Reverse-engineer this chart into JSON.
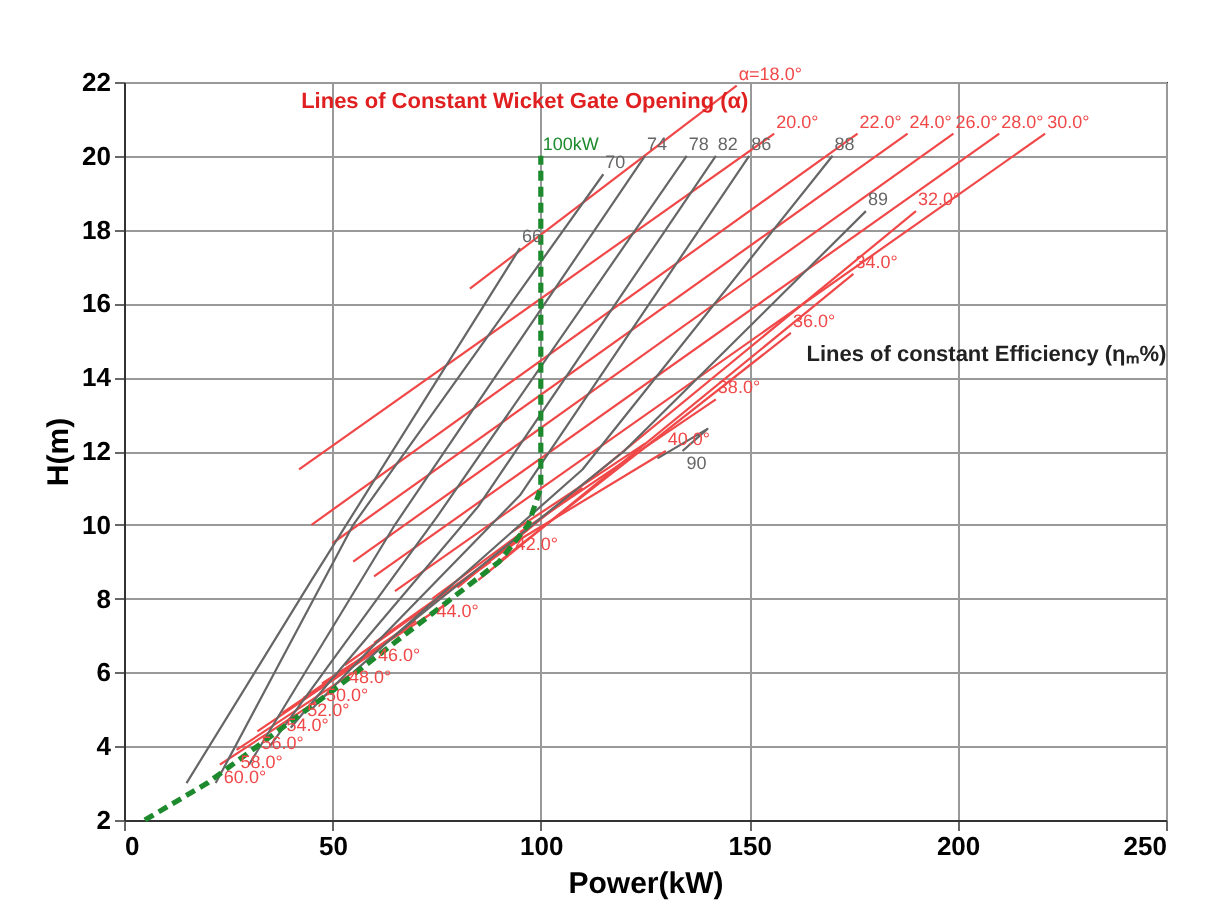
{
  "chart_data": {
    "type": "line",
    "xlabel": "Power(kW)",
    "ylabel": "H(m)",
    "xlim": [
      0,
      250
    ],
    "ylim": [
      2,
      22
    ],
    "xticks": [
      0,
      50,
      100,
      150,
      200,
      250
    ],
    "yticks": [
      2,
      4,
      6,
      8,
      10,
      12,
      14,
      16,
      18,
      20,
      22
    ],
    "grid": true,
    "marker": "none",
    "line_style": "solid",
    "series": [
      {
        "name": "α=18.0°",
        "color": "#f04848",
        "x": [
          83,
          147
        ],
        "values": [
          16.4,
          21.9
        ]
      },
      {
        "name": "20.0°",
        "color": "#f04848",
        "x": [
          42,
          156
        ],
        "values": [
          11.5,
          20.6
        ]
      },
      {
        "name": "22.0°",
        "color": "#f04848",
        "x": [
          45,
          176
        ],
        "values": [
          10,
          20.6
        ]
      },
      {
        "name": "24.0°",
        "color": "#f04848",
        "x": [
          50,
          188
        ],
        "values": [
          9.5,
          20.6
        ]
      },
      {
        "name": "26.0°",
        "color": "#f04848",
        "x": [
          55,
          199
        ],
        "values": [
          9,
          20.6
        ]
      },
      {
        "name": "28.0°",
        "color": "#f04848",
        "x": [
          60,
          210
        ],
        "values": [
          8.6,
          20.6
        ]
      },
      {
        "name": "30.0°",
        "color": "#f04848",
        "x": [
          65,
          221
        ],
        "values": [
          8.2,
          20.6
        ]
      },
      {
        "name": "32.0°",
        "color": "#f04848",
        "x": [
          80,
          190
        ],
        "values": [
          8.3,
          18.5
        ]
      },
      {
        "name": "34.0°",
        "color": "#f04848",
        "x": [
          85,
          175
        ],
        "values": [
          8.5,
          16.8
        ]
      },
      {
        "name": "36.0°",
        "color": "#f04848",
        "x": [
          90,
          160
        ],
        "values": [
          9,
          15.2
        ]
      },
      {
        "name": "38.0°",
        "color": "#f04848",
        "x": [
          95,
          142
        ],
        "values": [
          9.8,
          13.4
        ]
      },
      {
        "name": "40.0°",
        "color": "#f04848",
        "x": [
          92,
          130
        ],
        "values": [
          9.4,
          12
        ]
      },
      {
        "name": "42.0°",
        "color": "#f04848",
        "x": [
          125,
          93
        ],
        "values": [
          12.2,
          9.8
        ]
      },
      {
        "name": "44.0°",
        "color": "#f04848",
        "x": [
          110,
          74
        ],
        "values": [
          11,
          8
        ]
      },
      {
        "name": "46.0°",
        "color": "#f04848",
        "x": [
          95,
          60
        ],
        "values": [
          9.6,
          6.8
        ]
      },
      {
        "name": "48.0°",
        "color": "#f04848",
        "x": [
          88,
          53
        ],
        "values": [
          9,
          6.2
        ]
      },
      {
        "name": "50.0°",
        "color": "#f04848",
        "x": [
          78,
          47.5
        ],
        "values": [
          7.9,
          5.7
        ]
      },
      {
        "name": "52.0°",
        "color": "#f04848",
        "x": [
          70,
          43
        ],
        "values": [
          7.4,
          5.3
        ]
      },
      {
        "name": "54.0°",
        "color": "#f04848",
        "x": [
          68,
          38
        ],
        "values": [
          7.2,
          4.9
        ]
      },
      {
        "name": "56.0°",
        "color": "#f04848",
        "x": [
          62,
          32
        ],
        "values": [
          6.7,
          4.4
        ]
      },
      {
        "name": "58.0°",
        "color": "#f04848",
        "x": [
          55,
          27
        ],
        "values": [
          6,
          3.9
        ]
      },
      {
        "name": "60.0°",
        "color": "#f04848",
        "x": [
          50,
          23
        ],
        "values": [
          5.5,
          3.5
        ]
      },
      {
        "name": "66",
        "color": "#666666",
        "x": [
          15,
          45,
          95
        ],
        "values": [
          3,
          8.5,
          17.5
        ]
      },
      {
        "name": "70",
        "color": "#666666",
        "x": [
          22,
          55,
          115
        ],
        "values": [
          3,
          10,
          19.5
        ]
      },
      {
        "name": "74",
        "color": "#666666",
        "x": [
          30,
          65,
          125
        ],
        "values": [
          3.5,
          10,
          20
        ]
      },
      {
        "name": "78",
        "color": "#666666",
        "x": [
          35,
          75,
          135
        ],
        "values": [
          4,
          10.2,
          20
        ]
      },
      {
        "name": "82",
        "color": "#666666",
        "x": [
          40,
          85,
          142
        ],
        "values": [
          4.5,
          10.5,
          20
        ]
      },
      {
        "name": "86",
        "color": "#666666",
        "x": [
          45,
          95,
          150
        ],
        "values": [
          5,
          10.8,
          20
        ]
      },
      {
        "name": "88",
        "color": "#666666",
        "x": [
          55,
          110,
          170
        ],
        "values": [
          6,
          11.5,
          20
        ]
      },
      {
        "name": "89",
        "color": "#666666",
        "x": [
          65,
          120,
          178
        ],
        "values": [
          7,
          12,
          18.5
        ]
      },
      {
        "name": "90",
        "color": "#666666",
        "x": [
          128,
          134,
          140,
          134
        ],
        "values": [
          11.8,
          12.2,
          12.6,
          12
        ]
      },
      {
        "name": "100kW",
        "color": "#1e8a2e",
        "line_style": "dashed",
        "x": [
          5,
          20,
          50,
          90,
          97,
          100,
          100
        ],
        "values": [
          2,
          3,
          5.5,
          9,
          10,
          11,
          20
        ]
      }
    ],
    "annotations": [
      "Lines of Constant Wicket Gate Opening (α)",
      "Lines of constant Efficiency (ηₘ%)"
    ]
  }
}
